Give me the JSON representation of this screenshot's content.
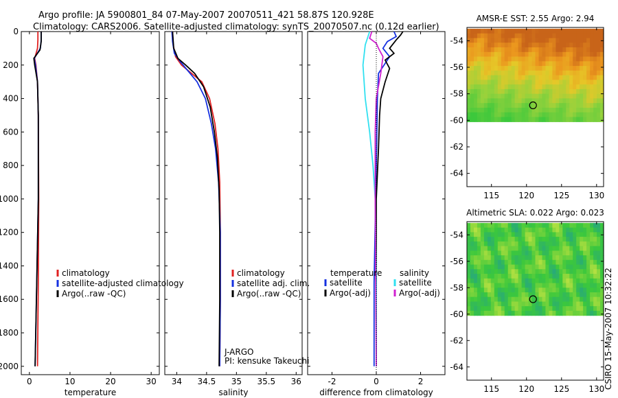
{
  "header": {
    "line1": "Argo profile: JA 5900801_84 07-May-2007 20070511_421 58.87S 120.928E",
    "line2": "Climatology: CARS2006. Satellite-adjusted climatology: synTS_20070507.nc (0.12d earlier)"
  },
  "side_label": "CSIRO 15-May-2007 10:32:22",
  "colors": {
    "climatology": "#e02020",
    "satellite": "#1530e0",
    "argo": "#000000",
    "sal_satellite": "#30e0f0",
    "sal_argo": "#d020d0"
  },
  "chart_data": [
    {
      "type": "line",
      "id": "temperature",
      "xlabel": "temperature",
      "xlim": [
        -2,
        32
      ],
      "ylim": [
        2050,
        0
      ],
      "x_ticks": [
        "0",
        "10",
        "20",
        "30"
      ],
      "y_ticks": [
        "0",
        "200",
        "400",
        "600",
        "800",
        "1000",
        "1200",
        "1400",
        "1600",
        "1800",
        "2000"
      ],
      "legend": [
        "climatology",
        "satellite-adjusted climatology",
        "Argo(..raw -QC)"
      ],
      "series": [
        {
          "name": "climatology",
          "color_key": "climatology",
          "points": [
            [
              2.1,
              0
            ],
            [
              2.1,
              50
            ],
            [
              2.0,
              100
            ],
            [
              1.3,
              160
            ],
            [
              1.6,
              200
            ],
            [
              2.0,
              300
            ],
            [
              2.2,
              500
            ],
            [
              2.3,
              1000
            ],
            [
              2.2,
              1500
            ],
            [
              2.0,
              2000
            ]
          ]
        },
        {
          "name": "satellite-adjusted climatology",
          "color_key": "satellite",
          "points": [
            [
              2.9,
              0
            ],
            [
              2.9,
              50
            ],
            [
              2.7,
              100
            ],
            [
              1.2,
              160
            ],
            [
              1.5,
              200
            ],
            [
              2.0,
              300
            ],
            [
              2.2,
              500
            ],
            [
              2.2,
              1000
            ],
            [
              1.8,
              1500
            ],
            [
              1.4,
              2000
            ]
          ]
        },
        {
          "name": "Argo(..raw -QC)",
          "color_key": "argo",
          "points": [
            [
              2.9,
              0
            ],
            [
              2.9,
              60
            ],
            [
              2.6,
              110
            ],
            [
              1.1,
              160
            ],
            [
              1.3,
              200
            ],
            [
              2.0,
              300
            ],
            [
              2.2,
              500
            ],
            [
              2.2,
              1000
            ],
            [
              1.8,
              1500
            ],
            [
              1.4,
              2000
            ]
          ]
        }
      ]
    },
    {
      "type": "line",
      "id": "salinity",
      "xlabel": "salinity",
      "xlim": [
        33.8,
        36.1
      ],
      "ylim": [
        2050,
        0
      ],
      "x_ticks": [
        "34",
        "34.5",
        "35",
        "35.5",
        "36"
      ],
      "legend": [
        "climatology",
        "satellite adj. clim.",
        "Argo(..raw -QC)"
      ],
      "annotation": [
        "J-ARGO",
        "PI: kensuke Takeuchi"
      ],
      "series": [
        {
          "name": "climatology",
          "color_key": "climatology",
          "points": [
            [
              33.93,
              0
            ],
            [
              33.94,
              80
            ],
            [
              33.98,
              150
            ],
            [
              34.08,
              200
            ],
            [
              34.25,
              250
            ],
            [
              34.42,
              300
            ],
            [
              34.55,
              400
            ],
            [
              34.64,
              550
            ],
            [
              34.69,
              700
            ],
            [
              34.72,
              900
            ],
            [
              34.73,
              1200
            ],
            [
              34.73,
              1600
            ],
            [
              34.72,
              2000
            ]
          ]
        },
        {
          "name": "satellite adj. clim.",
          "color_key": "satellite",
          "points": [
            [
              33.92,
              0
            ],
            [
              33.93,
              60
            ],
            [
              33.96,
              130
            ],
            [
              34.06,
              180
            ],
            [
              34.2,
              240
            ],
            [
              34.34,
              300
            ],
            [
              34.48,
              400
            ],
            [
              34.58,
              550
            ],
            [
              34.65,
              700
            ],
            [
              34.7,
              900
            ],
            [
              34.73,
              1200
            ],
            [
              34.73,
              1600
            ],
            [
              34.72,
              2000
            ]
          ]
        },
        {
          "name": "Argo(..raw -QC)",
          "color_key": "argo",
          "points": [
            [
              33.93,
              0
            ],
            [
              33.95,
              100
            ],
            [
              34.02,
              160
            ],
            [
              34.15,
              200
            ],
            [
              34.3,
              250
            ],
            [
              34.45,
              330
            ],
            [
              34.56,
              450
            ],
            [
              34.63,
              600
            ],
            [
              34.68,
              750
            ],
            [
              34.71,
              950
            ],
            [
              34.72,
              1200
            ],
            [
              34.72,
              1600
            ],
            [
              34.71,
              2000
            ]
          ]
        }
      ]
    },
    {
      "type": "line",
      "id": "difference",
      "xlabel": "difference from climatology",
      "xlim": [
        -3.1,
        3.1
      ],
      "ylim": [
        2050,
        0
      ],
      "x_ticks": [
        "-2",
        "0",
        "2"
      ],
      "legend_temperature": [
        "temperature",
        "satellite",
        "Argo(-adj)"
      ],
      "legend_salinity": [
        "salinity",
        "satellite",
        "Argo(-adj)"
      ],
      "series": [
        {
          "name": "temperature satellite",
          "color_key": "satellite",
          "points": [
            [
              0.8,
              0
            ],
            [
              0.9,
              30
            ],
            [
              0.5,
              60
            ],
            [
              0.3,
              100
            ],
            [
              0.6,
              150
            ],
            [
              0.1,
              250
            ],
            [
              0.05,
              400
            ],
            [
              0.0,
              800
            ],
            [
              -0.1,
              1500
            ],
            [
              -0.1,
              2000
            ]
          ]
        },
        {
          "name": "temperature Argo(-adj)",
          "color_key": "argo",
          "points": [
            [
              1.2,
              0
            ],
            [
              1.1,
              20
            ],
            [
              0.9,
              50
            ],
            [
              0.6,
              100
            ],
            [
              0.8,
              130
            ],
            [
              0.4,
              170
            ],
            [
              0.6,
              220
            ],
            [
              0.4,
              300
            ],
            [
              0.2,
              400
            ],
            [
              0.15,
              500
            ],
            [
              0.1,
              700
            ],
            [
              0.0,
              1000
            ],
            [
              0.0,
              1500
            ],
            [
              0.0,
              2000
            ]
          ]
        },
        {
          "name": "salinity satellite",
          "color_key": "sal_satellite",
          "points": [
            [
              -0.3,
              0
            ],
            [
              -0.5,
              80
            ],
            [
              -0.6,
              200
            ],
            [
              -0.5,
              400
            ],
            [
              -0.3,
              600
            ],
            [
              -0.15,
              800
            ],
            [
              -0.05,
              1000
            ],
            [
              0.0,
              1500
            ],
            [
              0.0,
              2000
            ]
          ]
        },
        {
          "name": "salinity Argo(-adj)",
          "color_key": "sal_argo",
          "points": [
            [
              -0.2,
              0
            ],
            [
              -0.3,
              40
            ],
            [
              0.0,
              70
            ],
            [
              0.1,
              100
            ],
            [
              0.3,
              150
            ],
            [
              0.2,
              250
            ],
            [
              0.0,
              400
            ],
            [
              -0.05,
              600
            ],
            [
              -0.05,
              1000
            ],
            [
              0.0,
              2000
            ]
          ]
        }
      ]
    },
    {
      "type": "heatmap",
      "id": "sst_map",
      "title": "AMSR-E SST: 2.55 Argo: 2.94",
      "xlim": [
        111.5,
        131
      ],
      "ylim": [
        -65,
        -53
      ],
      "x_ticks": [
        "115",
        "120",
        "125",
        "130"
      ],
      "y_ticks": [
        "-54",
        "-56",
        "-58",
        "-60",
        "-62",
        "-64"
      ],
      "data_ylim": [
        -60.1,
        -53.1
      ],
      "marker": [
        120.93,
        -58.87
      ],
      "field": "sst"
    },
    {
      "type": "heatmap",
      "id": "sla_map",
      "title": "Altimetric SLA: 0.022 Argo: 0.023",
      "xlim": [
        111.5,
        131
      ],
      "ylim": [
        -65,
        -53
      ],
      "x_ticks": [
        "115",
        "120",
        "125",
        "130"
      ],
      "y_ticks": [
        "-54",
        "-56",
        "-58",
        "-60",
        "-62",
        "-64"
      ],
      "data_ylim": [
        -60.1,
        -53.1
      ],
      "marker": [
        120.93,
        -58.87
      ],
      "field": "sla"
    }
  ]
}
